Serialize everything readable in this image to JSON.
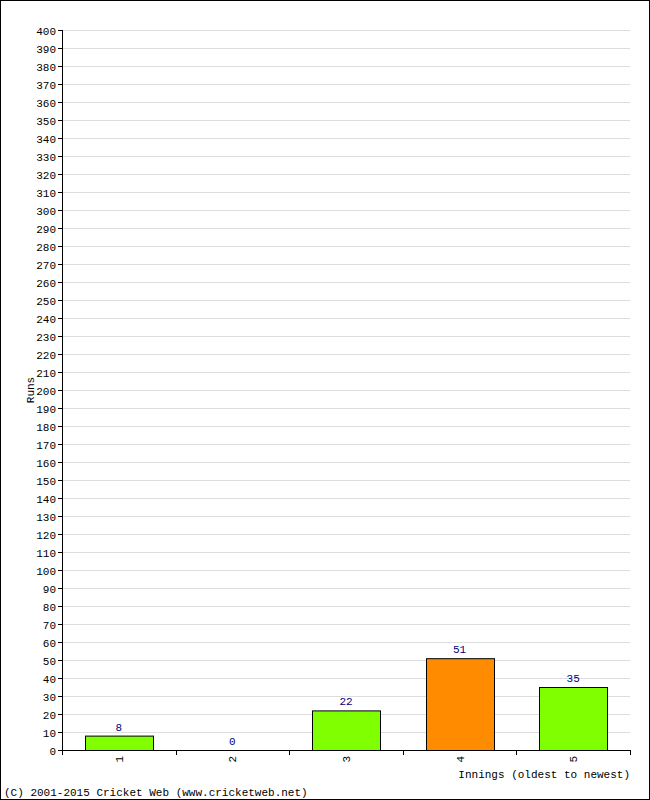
{
  "chart_data": {
    "type": "bar",
    "categories": [
      "1",
      "2",
      "3",
      "4",
      "5"
    ],
    "values": [
      8,
      0,
      22,
      51,
      35
    ],
    "colors": [
      "#80ff00",
      "#80ff00",
      "#80ff00",
      "#ff8c00",
      "#80ff00"
    ],
    "x_label": "Innings (oldest to newest)",
    "y_label": "Runs",
    "annotations": [
      "(C) 2001-2015 Cricket Web (www.cricketweb.net)"
    ],
    "ylim": [
      0,
      400
    ],
    "yticks": [
      0,
      10,
      20,
      30,
      40,
      50,
      60,
      70,
      80,
      90,
      100,
      110,
      120,
      130,
      140,
      150,
      160,
      170,
      180,
      190,
      200,
      210,
      220,
      230,
      240,
      250,
      260,
      270,
      280,
      290,
      300,
      310,
      320,
      330,
      340,
      350,
      360,
      370,
      380,
      390,
      400
    ],
    "grid": true,
    "data_labels": true
  }
}
